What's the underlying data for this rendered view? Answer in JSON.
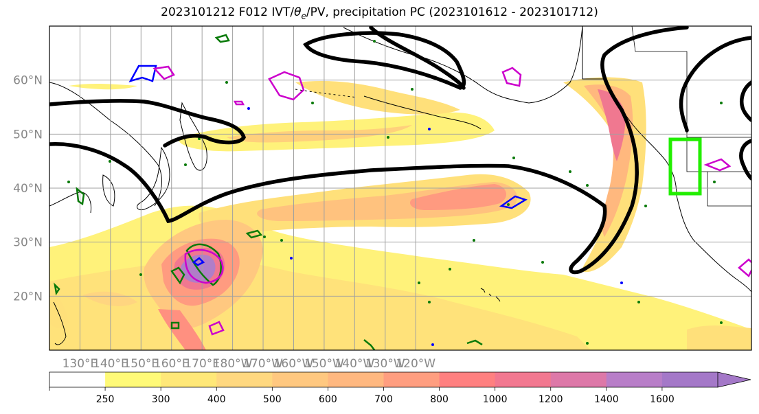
{
  "title": "2023101212 F012 IVT/θe/PV, precipitation PC (2023101612 - 2023101712)",
  "title_parts": {
    "prefix": "2023101212 F012 IVT/",
    "theta": "θ",
    "sub": "e",
    "suffix": "/PV, precipitation PC (2023101612 - 2023101712)"
  },
  "map": {
    "lon_range": [
      120,
      -110
    ],
    "lat_range": [
      10,
      70
    ],
    "lat_labels": [
      "60°N",
      "50°N",
      "40°N",
      "30°N",
      "20°N"
    ],
    "lon_labels": [
      "130°E",
      "140°E",
      "150°E",
      "160°E",
      "170°E",
      "180°W",
      "170°W",
      "160°W",
      "150°W",
      "140°W",
      "130°W",
      "120°W"
    ],
    "gridlines": true,
    "highlight_box_color": "#22ee00",
    "highlight_box": {
      "lon": [
        -125,
        -119
      ],
      "lat": [
        39,
        49
      ]
    }
  },
  "colorbar": {
    "levels": [
      "250",
      "300",
      "400",
      "500",
      "600",
      "700",
      "800",
      "1000",
      "1200",
      "1400",
      "1600"
    ],
    "colors": [
      "#ffffff",
      "#fffa78",
      "#ffe878",
      "#ffd880",
      "#ffc880",
      "#ffb880",
      "#ff9e80",
      "#ff8080",
      "#f27890",
      "#dd78a8",
      "#b87ec8",
      "#a478c8",
      "#a478c8"
    ],
    "extend": "max"
  },
  "contour_colors": {
    "pv": "#000000",
    "theta_e_green": "#0a7a0a",
    "blue": "#0000ff",
    "magenta": "#cc00cc"
  }
}
